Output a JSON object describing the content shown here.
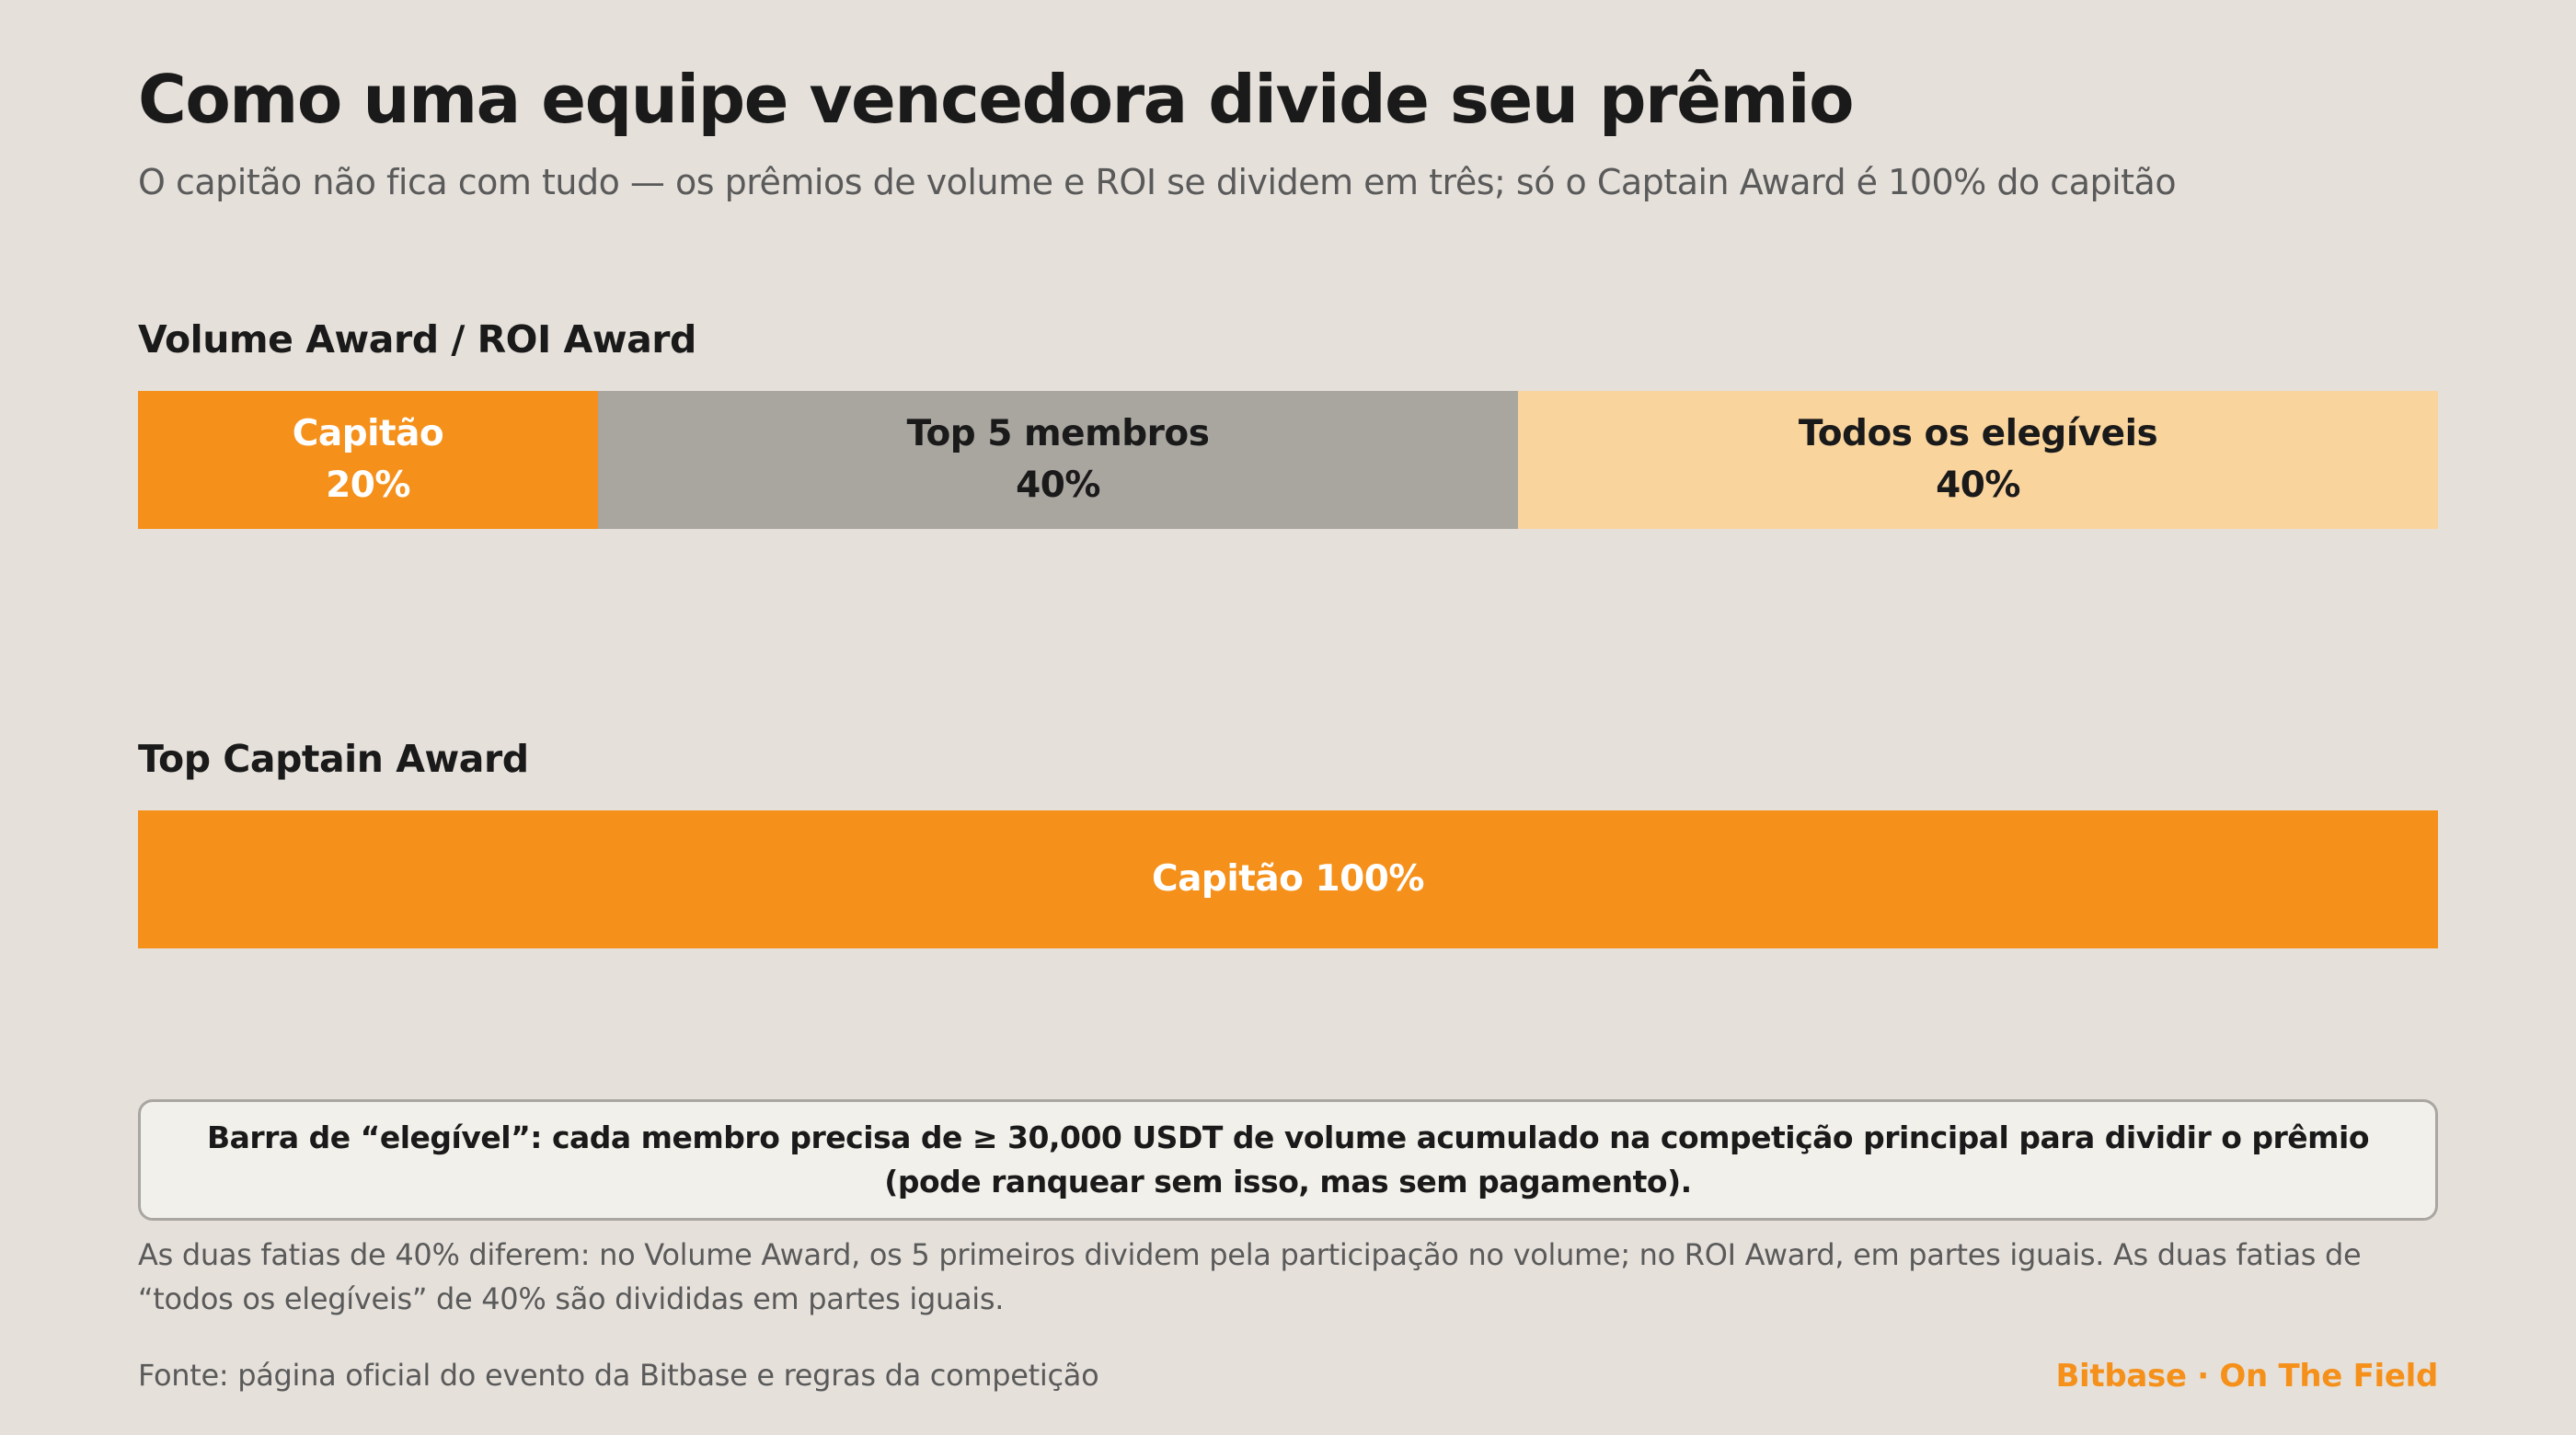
{
  "chart_data": {
    "type": "bar",
    "title": "Como uma equipe vencedora divide seu prêmio",
    "subtitle": "O capitão não fica com tudo — os prêmios de volume e ROI se dividem em três; só o Captain Award é 100% do capitão",
    "charts": [
      {
        "label": "Volume Award / ROI Award",
        "segments": [
          {
            "name": "Capitão",
            "value": 20,
            "value_label": "20%",
            "color": "#f5901a",
            "text_color": "#ffffff"
          },
          {
            "name": "Top 5 membros",
            "value": 40,
            "value_label": "40%",
            "color": "#a9a59f",
            "text_color": "#1a1a1a"
          },
          {
            "name": "Todos os elegíveis",
            "value": 40,
            "value_label": "40%",
            "color": "#fad49d",
            "text_color": "#1a1a1a"
          }
        ]
      },
      {
        "label": "Top Captain Award",
        "segments": [
          {
            "name": "Capitão 100%",
            "value": 100,
            "value_label": "",
            "color": "#f5901a",
            "text_color": "#ffffff"
          }
        ]
      }
    ]
  },
  "note": "Barra de “elegível”: cada membro precisa de ≥ 30,000 USDT de volume acumulado na competição principal para dividir o prêmio (pode ranquear sem isso, mas sem pagamento).",
  "footnote": "As duas fatias de 40% diferem: no Volume Award, os 5 primeiros dividem pela participação no volume; no ROI Award, em partes iguais. As duas fatias de “todos os elegíveis” de 40% são divididas em partes iguais.",
  "source": "Fonte: página oficial do evento da Bitbase e regras da competição",
  "brand": {
    "text": "Bitbase · On The Field",
    "color": "#f5901a"
  }
}
